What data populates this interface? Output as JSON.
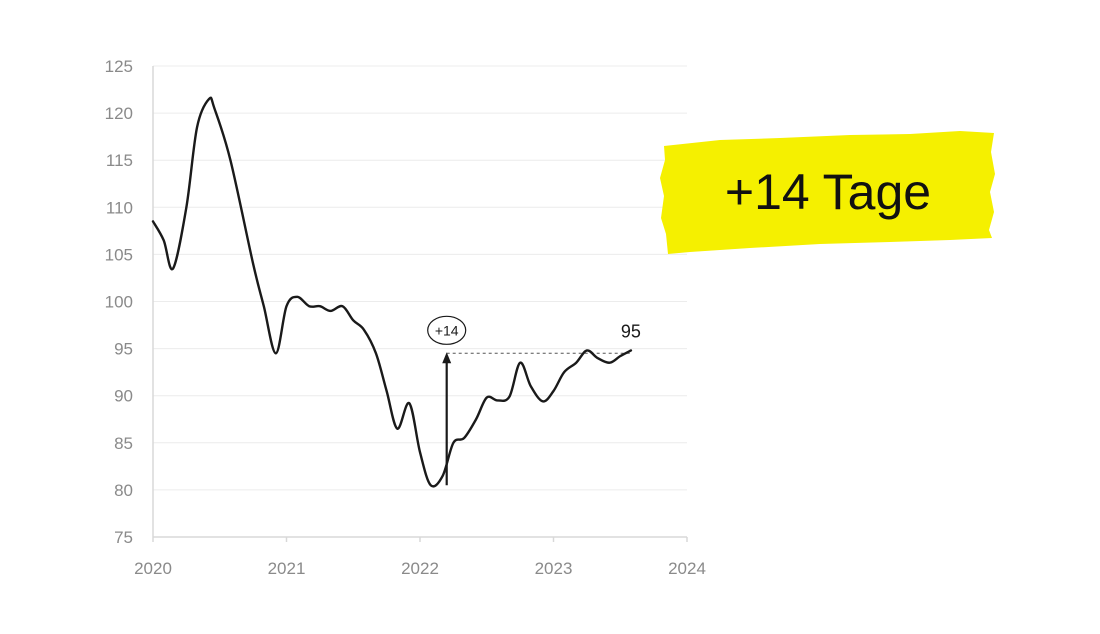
{
  "chart_data": {
    "type": "line",
    "title": "",
    "xlabel": "",
    "ylabel": "",
    "xlim": [
      2020,
      2024
    ],
    "ylim": [
      75,
      125
    ],
    "x_ticks": [
      "2020",
      "2021",
      "2022",
      "2023",
      "2024"
    ],
    "y_ticks": [
      "75",
      "80",
      "85",
      "90",
      "95",
      "100",
      "105",
      "110",
      "115",
      "120",
      "125"
    ],
    "grid": "horizontal",
    "series": [
      {
        "x": [
          2020.0,
          2020.08,
          2020.15,
          2020.25,
          2020.33,
          2020.42,
          2020.46,
          2020.58,
          2020.75,
          2020.83,
          2020.92,
          2021.0,
          2021.08,
          2021.17,
          2021.25,
          2021.33,
          2021.42,
          2021.5,
          2021.58,
          2021.67,
          2021.75,
          2021.83,
          2021.92,
          2022.0,
          2022.08,
          2022.17,
          2022.25,
          2022.33,
          2022.42,
          2022.5,
          2022.58,
          2022.67,
          2022.75,
          2022.83,
          2022.92,
          2023.0,
          2023.08,
          2023.17,
          2023.25,
          2023.33,
          2023.42,
          2023.5,
          2023.58
        ],
        "y": [
          108.5,
          106.5,
          103.5,
          110,
          118.5,
          121.5,
          120.5,
          115,
          104,
          99.5,
          94.5,
          99.5,
          100.5,
          99.5,
          99.5,
          99.0,
          99.5,
          98,
          97,
          94.5,
          90.5,
          86.5,
          89.2,
          84,
          80.5,
          81.5,
          85,
          85.5,
          87.5,
          89.8,
          89.5,
          89.9,
          93.5,
          91,
          89.4,
          90.5,
          92.5,
          93.5,
          94.8,
          94.0,
          93.5,
          94.2,
          94.8
        ]
      }
    ],
    "annotations": {
      "end_label": "95",
      "bubble_label": "+14",
      "arrow_from": [
        2022.2,
        80.5
      ],
      "arrow_to": [
        2022.2,
        94.5
      ],
      "reference_line_y": 94.5,
      "reference_line_from_x": 2022.2,
      "reference_line_to_x": 2023.58
    }
  },
  "highlight": {
    "text": "+14 Tage",
    "color": "#f5f000"
  },
  "colors": {
    "line": "#1a1a1a",
    "grid": "#ececec",
    "tick": "#8a8a8a"
  }
}
